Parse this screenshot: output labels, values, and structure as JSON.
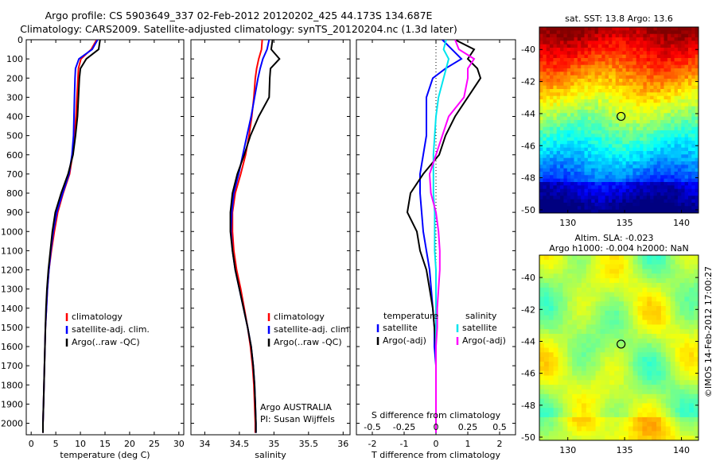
{
  "header": {
    "line1": "Argo profile: CS 5903649_337 02-Feb-2012 20120202_425 44.173S 134.687E",
    "line2": "Climatology: CARS2009. Satellite-adjusted climatology: synTS_20120204.nc (1.3d later)"
  },
  "colors": {
    "climatology": "#ff0000",
    "satellite": "#0000ff",
    "argo": "#000000",
    "sat_salinity": "#00e5ee",
    "argo_salinity": "#ff00ff"
  },
  "depth_axis": {
    "ticks": [
      "0",
      "100",
      "200",
      "300",
      "400",
      "500",
      "600",
      "700",
      "800",
      "900",
      "1000",
      "1100",
      "1200",
      "1300",
      "1400",
      "1500",
      "1600",
      "1700",
      "1800",
      "1900",
      "2000"
    ],
    "ylim": [
      0,
      2060
    ],
    "inverted": true
  },
  "legend": {
    "climatology": "climatology",
    "satellite": "satellite-adj. clim.",
    "argo": "Argo(..raw -QC)"
  },
  "diff_legend": {
    "temperature": "temperature",
    "salinity": "salinity",
    "t_sat": "satellite",
    "t_argo": "Argo(-adj)",
    "s_sat": "satellite",
    "s_argo": "Argo(-adj)"
  },
  "credit": {
    "line1": "Argo AUSTRALIA",
    "line2": "PI: Susan Wijffels"
  },
  "maps": {
    "sst_title": "sat. SST: 13.8 Argo: 13.6",
    "sla_title1": "Altim. SLA: -0.023",
    "sla_title2": "Argo h1000: -0.004 h2000: NaN",
    "y_ticks": [
      "-40",
      "-42",
      "-44",
      "-46",
      "-48",
      "-50"
    ],
    "x_ticks": [
      "130",
      "135",
      "140"
    ],
    "marker": {
      "lon": 134.687,
      "lat": -44.173
    }
  },
  "stamp": "©IMOS 14-Feb-2012 17:00:27",
  "chart_data": [
    {
      "type": "line",
      "id": "temperature",
      "xlabel": "temperature (deg C)",
      "xlim": [
        -1,
        31
      ],
      "x_ticks": [
        "0",
        "5",
        "10",
        "15",
        "20",
        "25",
        "30"
      ],
      "y": [
        0,
        50,
        100,
        150,
        200,
        300,
        400,
        500,
        600,
        700,
        800,
        900,
        1000,
        1100,
        1200,
        1300,
        1400,
        1500,
        1600,
        1700,
        1800,
        1900,
        2000,
        2050
      ],
      "series": [
        {
          "name": "climatology",
          "values": [
            13.3,
            12.2,
            10.1,
            9.6,
            9.5,
            9.3,
            9.1,
            8.8,
            8.4,
            7.8,
            6.5,
            5.4,
            4.7,
            4.1,
            3.6,
            3.3,
            3.1,
            2.9,
            2.8,
            2.7,
            2.6,
            2.5,
            2.4,
            2.4
          ]
        },
        {
          "name": "satellite-adj. clim.",
          "values": [
            13.5,
            12.4,
            9.7,
            9.0,
            8.9,
            8.8,
            8.7,
            8.6,
            8.3,
            7.7,
            6.4,
            5.2,
            4.5,
            4.0,
            3.6,
            3.3,
            3.1,
            2.9,
            2.8,
            2.7,
            2.6,
            2.5,
            2.4,
            2.4
          ]
        },
        {
          "name": "Argo(..raw -QC)",
          "values": [
            14.0,
            13.7,
            11.2,
            10.0,
            9.8,
            9.6,
            9.4,
            9.0,
            8.5,
            7.5,
            6.1,
            4.9,
            4.3,
            3.9,
            3.5,
            3.2,
            3.0,
            2.9,
            2.8,
            2.7,
            2.6,
            2.5,
            2.4,
            2.4
          ]
        }
      ]
    },
    {
      "type": "line",
      "id": "salinity",
      "xlabel": "salinity",
      "xlim": [
        33.8,
        36.1
      ],
      "x_ticks": [
        "34",
        "34.5",
        "35",
        "35.5",
        "36"
      ],
      "y": [
        0,
        50,
        100,
        150,
        200,
        300,
        400,
        500,
        600,
        700,
        800,
        900,
        1000,
        1100,
        1200,
        1300,
        1400,
        1500,
        1600,
        1700,
        1800,
        1900,
        2000,
        2050
      ],
      "series": [
        {
          "name": "climatology",
          "values": [
            34.83,
            34.82,
            34.78,
            34.75,
            34.73,
            34.71,
            34.68,
            34.64,
            34.59,
            34.52,
            34.44,
            34.4,
            34.4,
            34.42,
            34.46,
            34.52,
            34.57,
            34.62,
            34.66,
            34.69,
            34.71,
            34.72,
            34.73,
            34.73
          ]
        },
        {
          "name": "satellite-adj. clim.",
          "values": [
            34.93,
            34.9,
            34.84,
            34.8,
            34.77,
            34.72,
            34.67,
            34.61,
            34.55,
            34.49,
            34.42,
            34.39,
            34.38,
            34.4,
            34.44,
            34.5,
            34.56,
            34.62,
            34.67,
            34.7,
            34.72,
            34.73,
            34.74,
            34.74
          ]
        },
        {
          "name": "Argo(..raw -QC)",
          "values": [
            34.98,
            34.96,
            35.08,
            34.95,
            34.94,
            34.93,
            34.78,
            34.66,
            34.57,
            34.47,
            34.4,
            34.37,
            34.37,
            34.4,
            34.44,
            34.5,
            34.56,
            34.62,
            34.67,
            34.7,
            34.72,
            34.73,
            34.74,
            34.74
          ]
        }
      ]
    },
    {
      "type": "line",
      "id": "difference",
      "xlabel": "T difference from climatology",
      "xlim": [
        -2.5,
        2.5
      ],
      "x_ticks": [
        "-2",
        "-1",
        "0",
        "1",
        "2"
      ],
      "top_xlabel": "S difference from climatology",
      "top_ticks": [
        "-0.5",
        "-0.25",
        "0",
        "0.25",
        "0.5"
      ],
      "y": [
        0,
        50,
        100,
        150,
        200,
        300,
        400,
        500,
        600,
        700,
        800,
        900,
        1000,
        1100,
        1200,
        1300,
        1400,
        1500,
        1600,
        1700,
        1800,
        1900,
        2000,
        2050
      ],
      "series": [
        {
          "name": "temperature satellite",
          "values": [
            0.2,
            0.5,
            0.8,
            0.3,
            -0.1,
            -0.3,
            -0.3,
            -0.3,
            -0.4,
            -0.5,
            -0.5,
            -0.45,
            -0.4,
            -0.3,
            -0.2,
            -0.15,
            -0.1,
            -0.05,
            -0.05,
            0.0,
            0.0,
            0.0,
            0.0,
            0.0
          ]
        },
        {
          "name": "temperature Argo(-adj)",
          "values": [
            0.6,
            1.2,
            1.0,
            1.3,
            1.4,
            1.0,
            0.6,
            0.3,
            0.1,
            -0.4,
            -0.8,
            -0.9,
            -0.6,
            -0.5,
            -0.3,
            -0.2,
            -0.1,
            -0.05,
            0.0,
            0.0,
            0.0,
            0.0,
            0.0,
            0.0
          ]
        },
        {
          "name": "salinity satellite",
          "values": [
            0.08,
            0.06,
            0.1,
            0.08,
            0.06,
            0.02,
            0.0,
            -0.01,
            -0.02,
            -0.02,
            -0.02,
            -0.01,
            -0.01,
            -0.01,
            0.0,
            0.0,
            0.0,
            0.0,
            0.0,
            0.0,
            0.0,
            0.0,
            0.0,
            0.0
          ]
        },
        {
          "name": "salinity Argo(-adj)",
          "values": [
            0.15,
            0.18,
            0.3,
            0.25,
            0.25,
            0.22,
            0.1,
            0.05,
            0.0,
            -0.05,
            -0.04,
            0.0,
            0.02,
            0.03,
            0.03,
            0.02,
            0.01,
            0.01,
            0.0,
            0.0,
            0.0,
            0.0,
            0.0,
            0.0
          ]
        }
      ]
    },
    {
      "type": "heatmap",
      "id": "sst-map",
      "xlim": [
        127.5,
        141.5
      ],
      "ylim": [
        -50.2,
        -38.6
      ]
    },
    {
      "type": "heatmap",
      "id": "sla-map",
      "xlim": [
        127.5,
        141.5
      ],
      "ylim": [
        -50.2,
        -38.6
      ]
    }
  ]
}
